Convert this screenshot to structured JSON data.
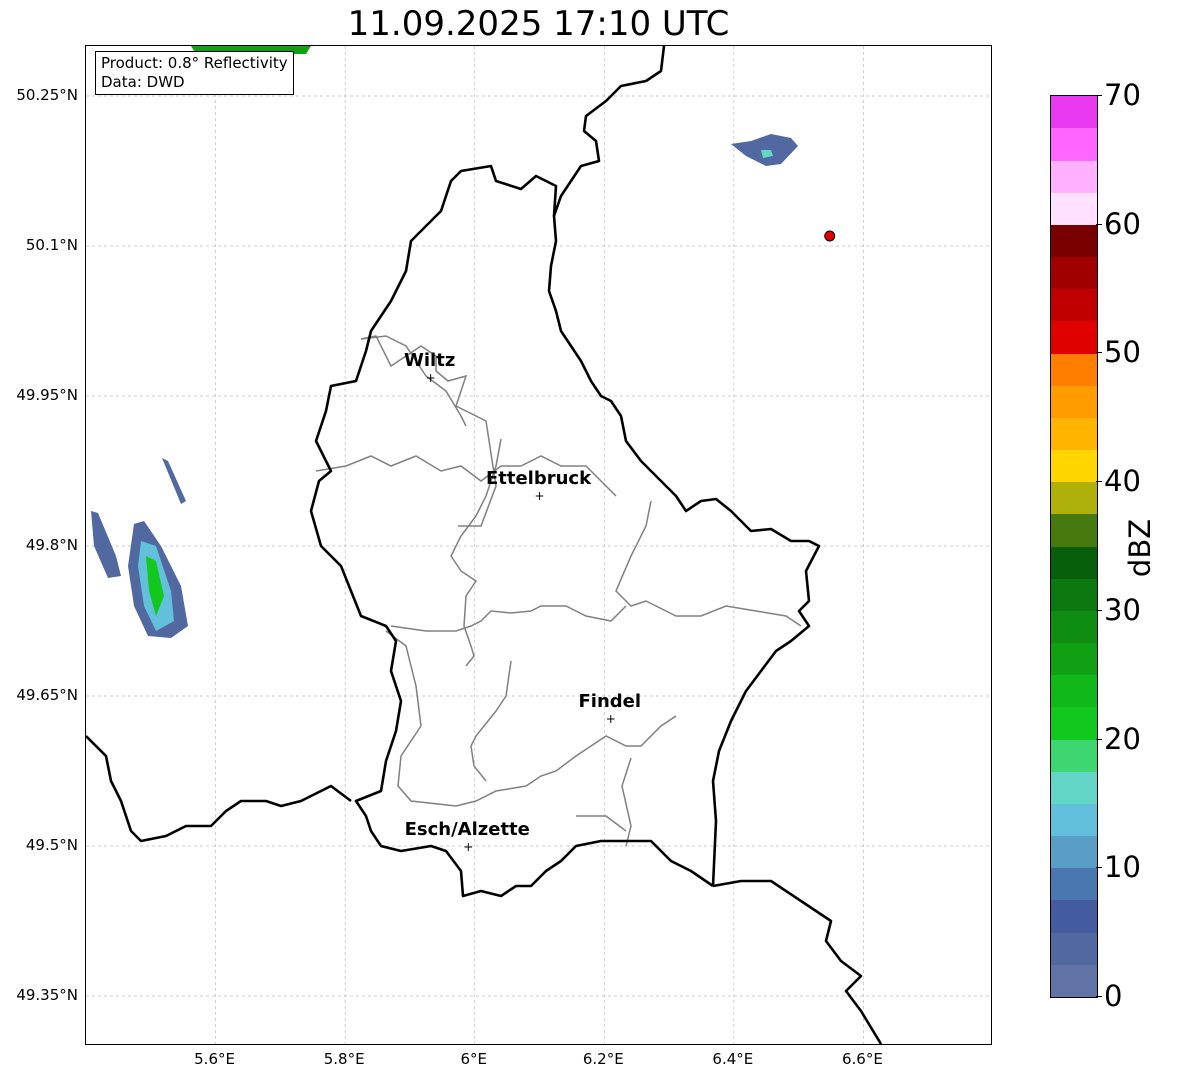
{
  "title": "11.09.2025 17:10 UTC",
  "info": {
    "product": "Product: 0.8° Reflectivity",
    "data": "Data: DWD"
  },
  "extent": {
    "lon": [
      5.4,
      6.8
    ],
    "lat": [
      49.3,
      50.3
    ]
  },
  "lon_ticks": [
    {
      "v": 5.6,
      "label": "5.6°E"
    },
    {
      "v": 5.8,
      "label": "5.8°E"
    },
    {
      "v": 6.0,
      "label": "6°E"
    },
    {
      "v": 6.2,
      "label": "6.2°E"
    },
    {
      "v": 6.4,
      "label": "6.4°E"
    },
    {
      "v": 6.6,
      "label": "6.6°E"
    }
  ],
  "lat_ticks": [
    {
      "v": 50.25,
      "label": "50.25°N"
    },
    {
      "v": 50.1,
      "label": "50.1°N"
    },
    {
      "v": 49.95,
      "label": "49.95°N"
    },
    {
      "v": 49.8,
      "label": "49.8°N"
    },
    {
      "v": 49.65,
      "label": "49.65°N"
    },
    {
      "v": 49.5,
      "label": "49.5°N"
    },
    {
      "v": 49.35,
      "label": "49.35°N"
    }
  ],
  "cities": [
    {
      "name": "Wiltz",
      "lon": 5.932,
      "lat": 49.968
    },
    {
      "name": "Ettelbruck",
      "lon": 6.1,
      "lat": 49.85
    },
    {
      "name": "Findel",
      "lon": 6.21,
      "lat": 49.627
    },
    {
      "name": "Esch/Alzette",
      "lon": 5.99,
      "lat": 49.499
    }
  ],
  "radar_site": {
    "lon": 6.548,
    "lat": 50.11,
    "color": "#e00000"
  },
  "colorbar": {
    "label": "dBZ",
    "min": 0,
    "max": 70,
    "ticks": [
      {
        "v": 0,
        "label": "0"
      },
      {
        "v": 10,
        "label": "10"
      },
      {
        "v": 20,
        "label": "20"
      },
      {
        "v": 30,
        "label": "30"
      },
      {
        "v": 40,
        "label": "40"
      },
      {
        "v": 50,
        "label": "50"
      },
      {
        "v": 60,
        "label": "60"
      },
      {
        "v": 70,
        "label": "70"
      }
    ],
    "colors": [
      "#6173a6",
      "#5169a0",
      "#425c9f",
      "#4978b0",
      "#5a9ec8",
      "#63c0dc",
      "#63d6c8",
      "#3ed670",
      "#12c81e",
      "#10b81a",
      "#10a014",
      "#0f8c12",
      "#0b7810",
      "#075f0c",
      "#467a0f",
      "#b0b00a",
      "#ffd600",
      "#ffb400",
      "#ff9c00",
      "#ff7e00",
      "#e00000",
      "#c00000",
      "#a00000",
      "#780000",
      "#ffe0ff",
      "#ffb0ff",
      "#ff66ff",
      "#e838f0"
    ]
  }
}
